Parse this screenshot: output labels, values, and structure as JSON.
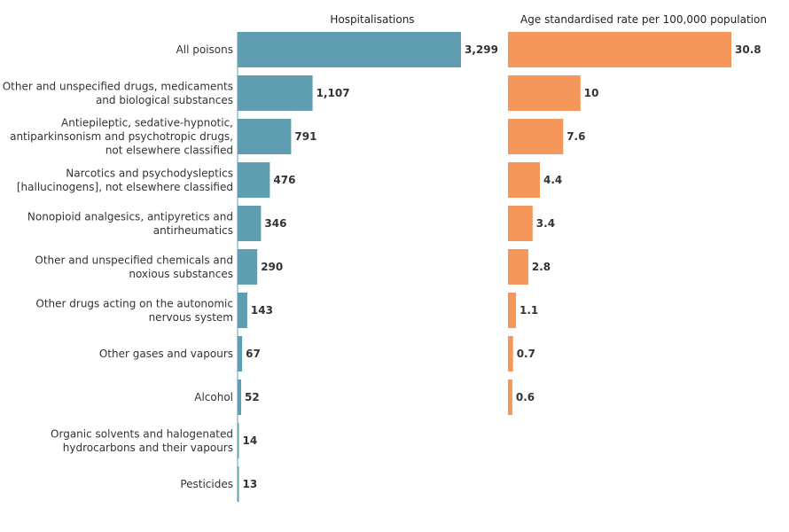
{
  "chart_data": {
    "type": "bar",
    "orientation": "horizontal",
    "categories": [
      [
        "All poisons"
      ],
      [
        "Other and unspecified drugs, medicaments",
        "and biological substances"
      ],
      [
        "Antiepileptic, sedative-hypnotic,",
        "antiparkinsonism and psychotropic drugs,",
        "not elsewhere classified"
      ],
      [
        "Narcotics and psychodysleptics",
        "[hallucinogens], not elsewhere classified"
      ],
      [
        "Nonopioid analgesics, antipyretics and",
        "antirheumatics"
      ],
      [
        "Other and unspecified chemicals and",
        "noxious substances"
      ],
      [
        "Other drugs acting on the autonomic",
        "nervous system"
      ],
      [
        "Other gases and vapours"
      ],
      [
        "Alcohol"
      ],
      [
        "Organic solvents and halogenated",
        "hydrocarbons and their vapours"
      ],
      [
        "Pesticides"
      ]
    ],
    "series": [
      {
        "name": "Hospitalisations",
        "color": "#5f9db1",
        "values": [
          3299,
          1107,
          791,
          476,
          346,
          290,
          143,
          67,
          52,
          14,
          13
        ],
        "labels": [
          "3,299",
          "1,107",
          "791",
          "476",
          "346",
          "290",
          "143",
          "67",
          "52",
          "14",
          "13"
        ]
      },
      {
        "name": "Age standardised rate per 100,000 population",
        "color": "#f5965a",
        "values": [
          30.8,
          10,
          7.6,
          4.4,
          3.4,
          2.8,
          1.1,
          0.7,
          0.6,
          null,
          null
        ],
        "labels": [
          "30.8",
          "10",
          "7.6",
          "4.4",
          "3.4",
          "2.8",
          "1.1",
          "0.7",
          "0.6",
          "",
          ""
        ]
      }
    ]
  }
}
